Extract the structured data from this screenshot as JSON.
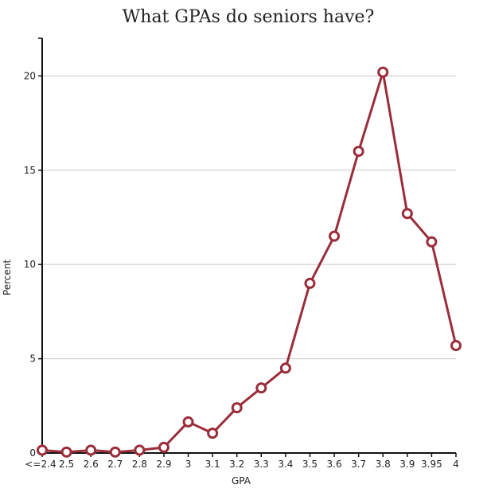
{
  "chart_data": {
    "type": "line",
    "title": "What GPAs do seniors have?",
    "xlabel": "GPA",
    "ylabel": "Percent",
    "categories": [
      "<=2.4",
      "2.5",
      "2.6",
      "2.7",
      "2.8",
      "2.9",
      "3",
      "3.1",
      "3.2",
      "3.3",
      "3.4",
      "3.5",
      "3.6",
      "3.7",
      "3.8",
      "3.9",
      "3.95",
      "4"
    ],
    "series": [
      {
        "values": [
          0.15,
          0.05,
          0.15,
          0.05,
          0.15,
          0.3,
          1.65,
          1.05,
          2.4,
          3.45,
          4.5,
          9.0,
          11.5,
          16.0,
          20.2,
          12.7,
          11.2,
          5.7
        ]
      }
    ],
    "ylim": [
      0,
      22
    ],
    "yticks": [
      0,
      5,
      10,
      15,
      20
    ],
    "grid": true,
    "line_color": "#9b2d3a",
    "marker_fill": "#ffffff"
  }
}
